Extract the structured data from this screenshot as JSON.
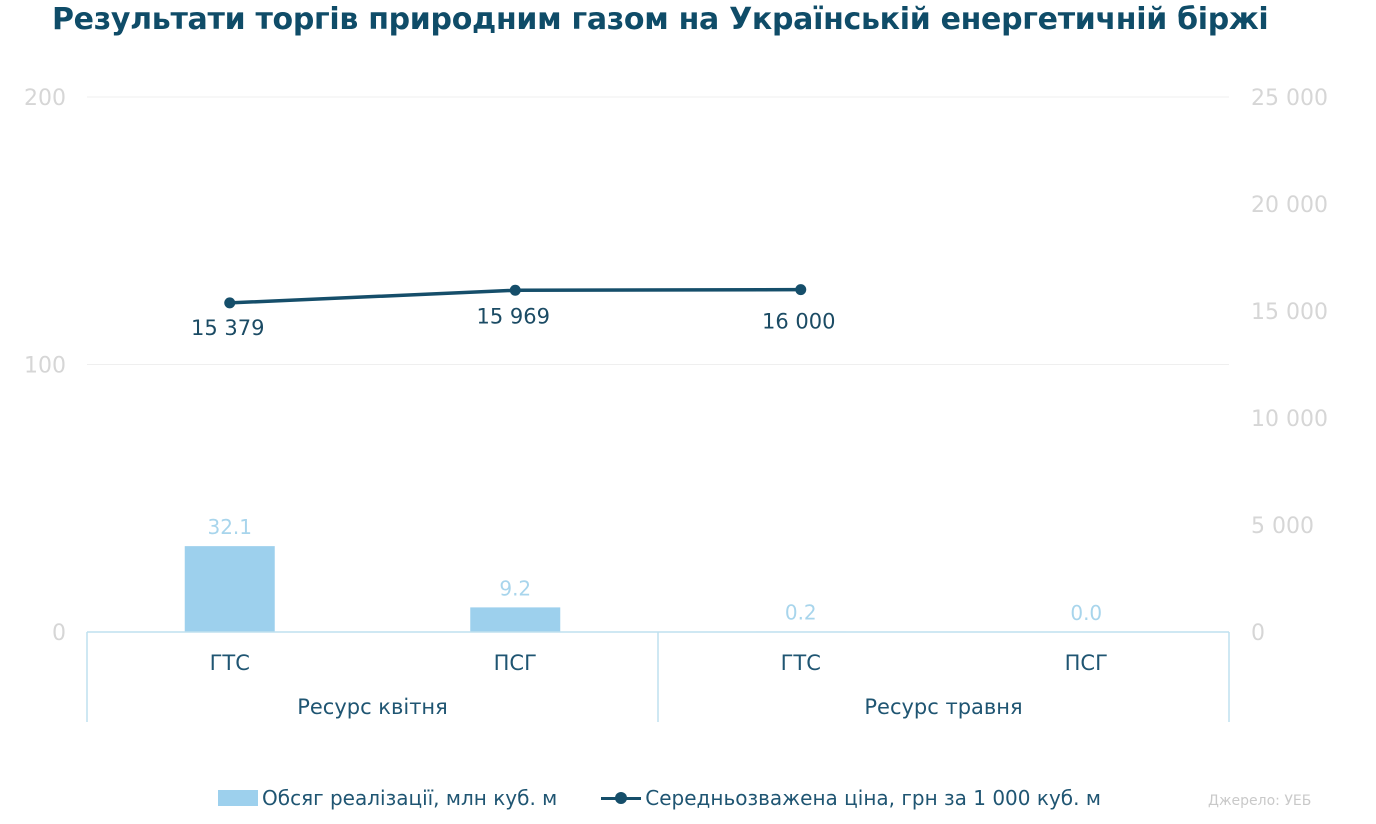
{
  "title": "Результати торгів природним газом на Українській енергетичній біржі",
  "legend": {
    "bars": "Обсяг реалізації, млн куб. м",
    "line": "Середньозважена ціна, грн за 1 000 куб. м"
  },
  "source": "Джерело: УЕБ",
  "colors": {
    "title": "#0f4c68",
    "bar": "#9dd0ed",
    "line": "#154e6a",
    "axis_text": "#d6d6d6",
    "category_text": "#1f5572",
    "grid": "#efefef",
    "frame": "#bfe0ef"
  },
  "chart_data": {
    "type": "bar",
    "categories": [
      "ГТС",
      "ПСГ",
      "ГТС",
      "ПСГ"
    ],
    "groups": [
      {
        "label": "Ресурс квітня",
        "categories": [
          "ГТС",
          "ПСГ"
        ]
      },
      {
        "label": "Ресурс травня",
        "categories": [
          "ГТС",
          "ПСГ"
        ]
      }
    ],
    "series": [
      {
        "name": "Обсяг реалізації, млн куб. м",
        "type": "bar",
        "axis": "left",
        "values": [
          32.1,
          9.2,
          0.2,
          0.0
        ],
        "labels": [
          "32.1",
          "9.2",
          "0.2",
          "0.0"
        ]
      },
      {
        "name": "Середньозважена ціна, грн за 1 000 куб. м",
        "type": "line",
        "axis": "right",
        "values": [
          15379,
          15969,
          16000,
          null
        ],
        "labels": [
          "15 379",
          "15 969",
          "16 000",
          ""
        ]
      }
    ],
    "y_left": {
      "lim": [
        0,
        200
      ],
      "ticks": [
        0,
        100,
        200
      ],
      "tick_labels": [
        "0",
        "100",
        "200"
      ]
    },
    "y_right": {
      "lim": [
        0,
        25000
      ],
      "ticks": [
        0,
        5000,
        10000,
        15000,
        20000,
        25000
      ],
      "tick_labels": [
        "0",
        "5 000",
        "10 000",
        "15 000",
        "20 000",
        "25 000"
      ]
    },
    "grid": true,
    "legend_position": "bottom"
  }
}
